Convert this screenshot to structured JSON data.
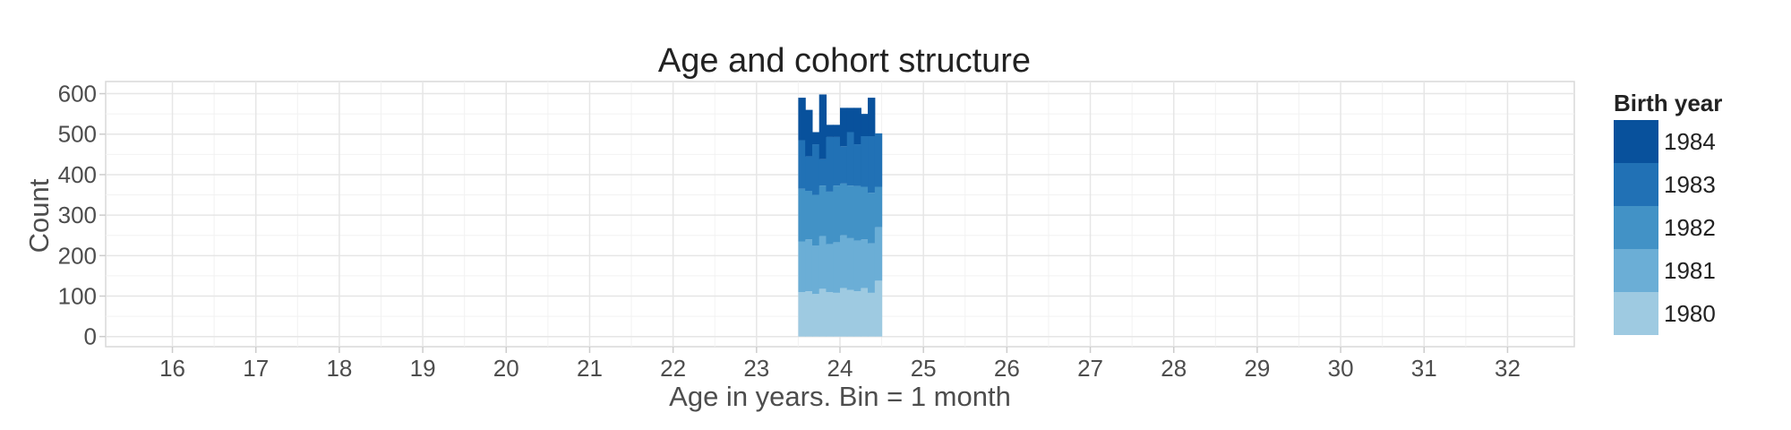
{
  "chart_data": {
    "type": "bar",
    "stacked": true,
    "title": "Age and cohort structure",
    "xlabel": "Age in years. Bin = 1 month",
    "ylabel": "Count",
    "xlim": [
      15.2,
      32.8
    ],
    "ylim": [
      -25,
      630
    ],
    "xticks": [
      16,
      17,
      18,
      19,
      20,
      21,
      22,
      23,
      24,
      25,
      26,
      27,
      28,
      29,
      30,
      31,
      32
    ],
    "yticks": [
      0,
      100,
      200,
      300,
      400,
      500,
      600
    ],
    "grid": true,
    "legend_position": "right",
    "legend_title": "Birth year",
    "bin_width": 0.0833,
    "x": [
      23.5,
      23.583,
      23.667,
      23.75,
      23.833,
      23.917,
      24.0,
      24.083,
      24.167,
      24.25,
      24.333,
      24.417
    ],
    "series": [
      {
        "name": "1980",
        "color": "#9ecae1",
        "values": [
          110,
          112,
          105,
          118,
          110,
          108,
          120,
          115,
          112,
          120,
          108,
          138
        ]
      },
      {
        "name": "1981",
        "color": "#6baed6",
        "values": [
          125,
          128,
          120,
          130,
          118,
          125,
          130,
          128,
          125,
          120,
          122,
          132
        ]
      },
      {
        "name": "1982",
        "color": "#4292c6",
        "values": [
          130,
          120,
          125,
          125,
          130,
          140,
          128,
          130,
          135,
          130,
          125,
          100
        ]
      },
      {
        "name": "1983",
        "color": "#2171b5",
        "values": [
          120,
          85,
          125,
          65,
          135,
          120,
          92,
          132,
          103,
          125,
          140,
          132
        ]
      },
      {
        "name": "1984",
        "color": "#08519c",
        "values": [
          105,
          115,
          30,
          160,
          30,
          30,
          95,
          60,
          90,
          55,
          95,
          0
        ]
      }
    ]
  }
}
